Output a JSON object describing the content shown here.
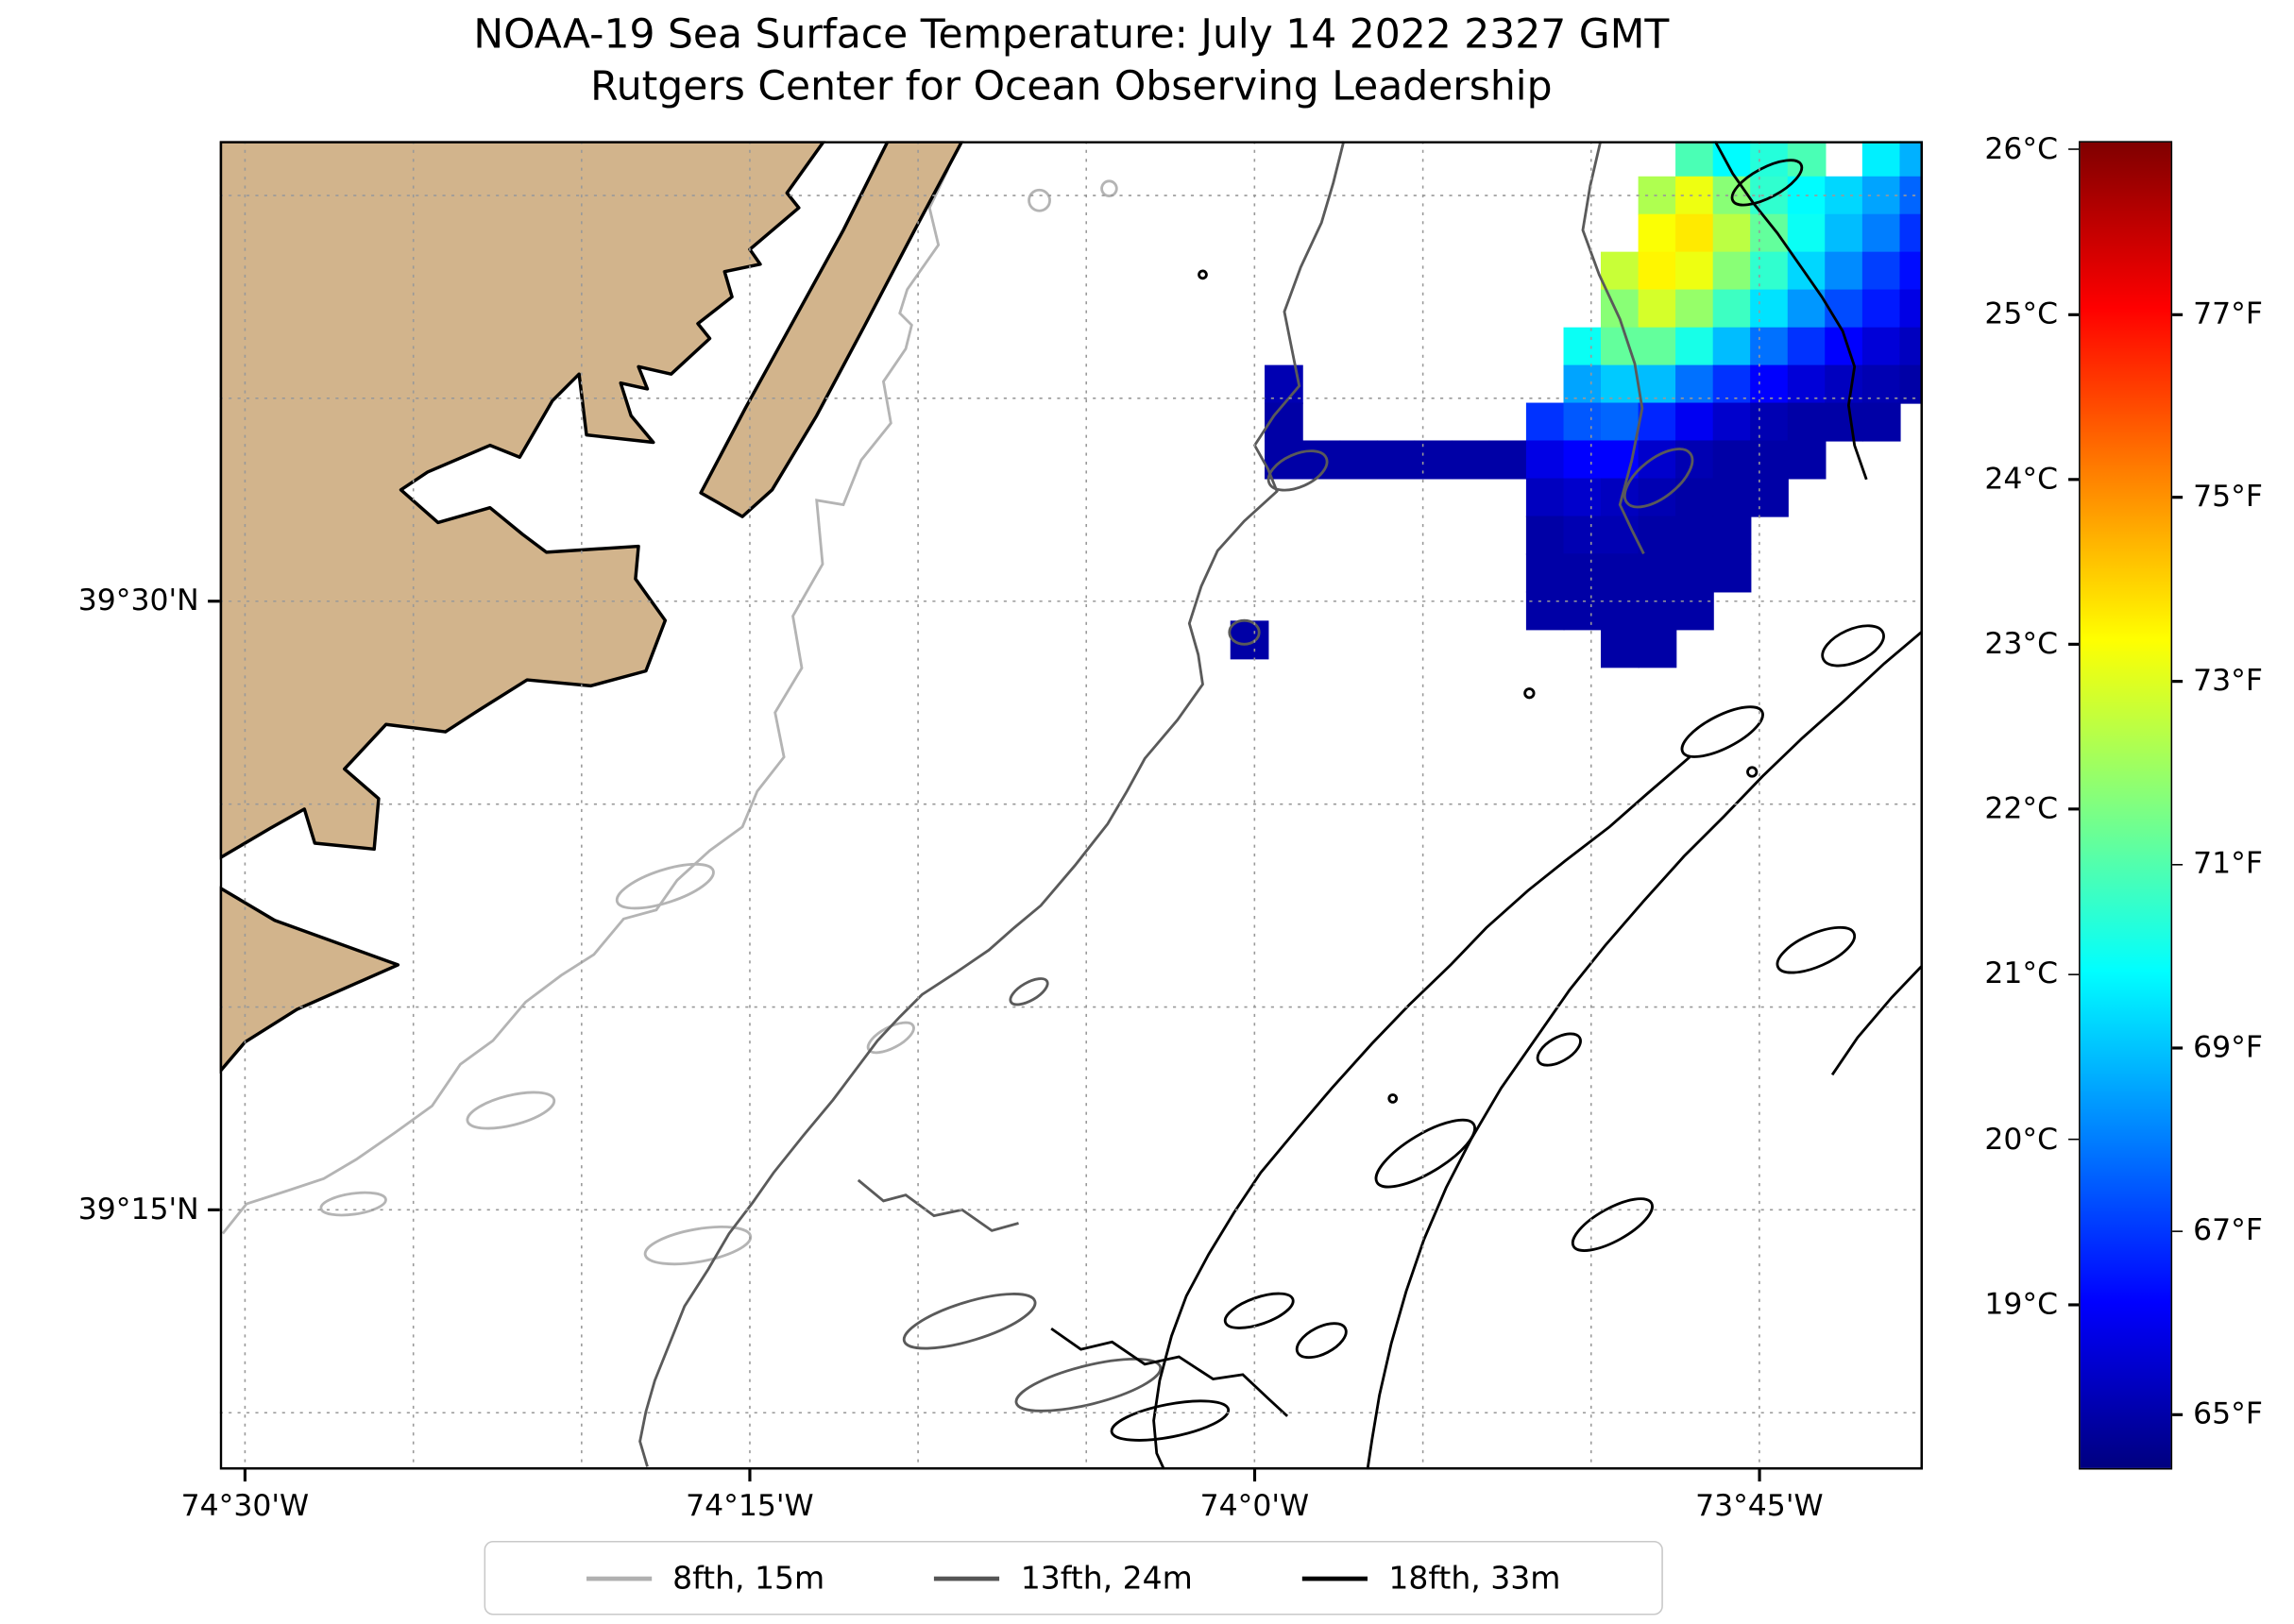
{
  "title": {
    "line1": "NOAA-19 Sea Surface Temperature: July 14 2022 2327 GMT",
    "line2": "Rutgers Center for Ocean Observing Leadership"
  },
  "axes": {
    "extent": {
      "lon_min": -74.5125,
      "lon_max": -73.669,
      "lat_min": 39.1433,
      "lat_max": 39.689
    },
    "x_ticks": [
      {
        "label": "74°30'W",
        "lon": -74.5
      },
      {
        "label": "74°15'W",
        "lon": -74.25
      },
      {
        "label": "74°0'W",
        "lon": -74.0
      },
      {
        "label": "73°45'W",
        "lon": -73.75
      }
    ],
    "y_ticks": [
      {
        "label": "39°30'N",
        "lat": 39.5
      },
      {
        "label": "39°15'N",
        "lat": 39.25
      }
    ],
    "gridline_step_deg": 0.0833333
  },
  "colorbar": {
    "min_c": 18.0,
    "max_c": 26.05,
    "ticks_c": [
      {
        "label": "26°C",
        "value": 26
      },
      {
        "label": "25°C",
        "value": 25
      },
      {
        "label": "24°C",
        "value": 24
      },
      {
        "label": "23°C",
        "value": 23
      },
      {
        "label": "22°C",
        "value": 22
      },
      {
        "label": "21°C",
        "value": 21
      },
      {
        "label": "20°C",
        "value": 20
      },
      {
        "label": "19°C",
        "value": 19
      }
    ],
    "ticks_f": [
      {
        "label": "77°F",
        "value_f": 77
      },
      {
        "label": "75°F",
        "value_f": 75
      },
      {
        "label": "73°F",
        "value_f": 73
      },
      {
        "label": "71°F",
        "value_f": 71
      },
      {
        "label": "69°F",
        "value_f": 69
      },
      {
        "label": "67°F",
        "value_f": 67
      },
      {
        "label": "65°F",
        "value_f": 65
      }
    ]
  },
  "legend": {
    "items": [
      {
        "label": "8fth, 15m",
        "color": "#b0b0b0"
      },
      {
        "label": "13fth, 24m",
        "color": "#555555"
      },
      {
        "label": "18fth, 33m",
        "color": "#000000"
      }
    ]
  },
  "colors": {
    "land": "#d2b48c",
    "coastline": "#000000",
    "grid": "#999999",
    "contour_15m": "#b4b4b4",
    "contour_24m": "#5a5a5a",
    "contour_33m": "#000000",
    "background": "#ffffff"
  },
  "chart_data": {
    "type": "heatmap",
    "title": "NOAA-19 Sea Surface Temperature: July 14 2022 2327 GMT",
    "subtitle": "Rutgers Center for Ocean Observing Leadership",
    "value_units": "°C",
    "colormap": "jet",
    "color_range_c": [
      18.0,
      26.05
    ],
    "no_data_color": "#ffffff",
    "x_tick_labels": [
      "74°30'W",
      "74°15'W",
      "74°0'W",
      "73°45'W"
    ],
    "y_tick_labels": [
      "39°30'N",
      "39°15'N"
    ],
    "colorbar_ticks_c": [
      26,
      25,
      24,
      23,
      22,
      21,
      20,
      19
    ],
    "colorbar_ticks_f": [
      77,
      75,
      73,
      71,
      69,
      67,
      65
    ],
    "legend_entries": [
      "8fth, 15m",
      "13fth, 24m",
      "18fth, 33m"
    ],
    "grid": {
      "lon0": -73.995,
      "lat0": 39.69,
      "dlon": 0.0185,
      "dlat": 0.0155,
      "values": [
        [
          null,
          null,
          null,
          null,
          null,
          null,
          null,
          null,
          null,
          null,
          null,
          21.6,
          21.0,
          21.3,
          21.6,
          null,
          20.9,
          20.4
        ],
        [
          null,
          null,
          null,
          null,
          null,
          null,
          null,
          null,
          null,
          null,
          22.4,
          22.9,
          22.1,
          21.4,
          21.0,
          20.7,
          20.3,
          19.8
        ],
        [
          null,
          null,
          null,
          null,
          null,
          null,
          null,
          null,
          null,
          null,
          23.0,
          23.2,
          22.5,
          21.8,
          21.1,
          20.5,
          20.0,
          19.4
        ],
        [
          null,
          null,
          null,
          null,
          null,
          null,
          null,
          null,
          null,
          22.6,
          23.1,
          22.9,
          22.1,
          21.4,
          20.7,
          20.1,
          19.5,
          19.1
        ],
        [
          null,
          null,
          null,
          null,
          null,
          null,
          null,
          null,
          null,
          22.1,
          22.7,
          22.2,
          21.5,
          20.8,
          20.2,
          19.6,
          19.2,
          18.8
        ],
        [
          null,
          null,
          null,
          null,
          null,
          null,
          null,
          null,
          21.1,
          21.8,
          21.8,
          21.2,
          20.5,
          19.9,
          19.4,
          19.0,
          18.7,
          18.5
        ],
        [
          18.4,
          null,
          null,
          null,
          null,
          null,
          null,
          null,
          20.3,
          20.6,
          20.5,
          19.9,
          19.4,
          19.0,
          18.7,
          18.5,
          18.4,
          18.3
        ],
        [
          18.3,
          null,
          null,
          null,
          null,
          null,
          null,
          19.4,
          19.7,
          19.8,
          19.3,
          18.9,
          18.6,
          18.4,
          18.3,
          18.3,
          18.3,
          null
        ],
        [
          18.3,
          18.3,
          18.3,
          18.3,
          18.3,
          18.3,
          18.3,
          18.8,
          19.0,
          19.0,
          18.6,
          18.4,
          18.3,
          18.3,
          18.3,
          null,
          null,
          null
        ],
        [
          null,
          null,
          null,
          null,
          null,
          null,
          null,
          18.5,
          18.6,
          18.5,
          18.4,
          18.3,
          18.3,
          18.3,
          null,
          null,
          null,
          null
        ],
        [
          null,
          null,
          null,
          null,
          null,
          null,
          null,
          18.3,
          18.4,
          18.4,
          18.3,
          18.3,
          18.3,
          null,
          null,
          null,
          null,
          null
        ],
        [
          null,
          null,
          null,
          null,
          null,
          null,
          null,
          18.3,
          18.3,
          18.3,
          18.3,
          18.3,
          18.3,
          null,
          null,
          null,
          null,
          null
        ],
        [
          null,
          null,
          null,
          null,
          null,
          null,
          null,
          18.3,
          18.3,
          18.3,
          18.3,
          18.3,
          null,
          null,
          null,
          null,
          null,
          null
        ],
        [
          null,
          null,
          null,
          null,
          null,
          null,
          null,
          null,
          null,
          18.3,
          18.3,
          null,
          null,
          null,
          null,
          null,
          null,
          null
        ]
      ]
    },
    "isolated_cells": [
      {
        "lon": -74.012,
        "lat": 39.492,
        "value_c": 18.3
      }
    ]
  }
}
